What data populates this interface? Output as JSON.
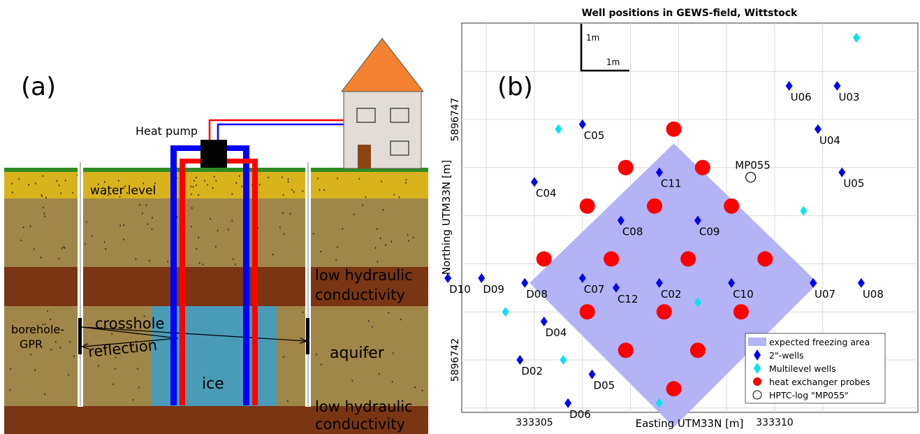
{
  "panel_a": {
    "label": "(a)",
    "heat_pump": "Heat pump",
    "water_level": "water level",
    "low_conductivity_top_1": "low hydraulic",
    "low_conductivity_top_2": "conductivity",
    "low_conductivity_bottom_1": "low hydraulic",
    "low_conductivity_bottom_2": "conductivity",
    "borehole_1": "borehole-",
    "borehole_2": "GPR",
    "crosshole": "crosshole",
    "reflection": "reflection",
    "aquifer": "aquifer",
    "ice": "ice",
    "colors": {
      "grass": "#2e8b1e",
      "topsoil": "#d8b21c",
      "soil": "#a08648",
      "clay": "#7a3512",
      "ice": "#4a9bb8",
      "pipe_blue": "#0000ff",
      "pipe_red": "#ff0000",
      "roof": "#f48230",
      "wall": "#e2dcd6",
      "door": "#8b4513"
    }
  },
  "panel_b": {
    "label": "(b)",
    "scale_vertical": "1m",
    "scale_horizontal": "1m"
  },
  "chart_data": {
    "type": "scatter",
    "title": "Well positions in GEWS-field, Wittstock",
    "xlabel": "Easting UTM33N [m]",
    "ylabel": "Northing UTM33N [m]",
    "xlim": [
      333302.0,
      333312.0
    ],
    "ylim": [
      5896741.0,
      5896748.5
    ],
    "xticks": [
      "333305",
      "333310"
    ],
    "yticks": [
      "5896742",
      "5896747"
    ],
    "grid": true,
    "legend_position": "bottom-right",
    "freezing_area": {
      "name": "expected freezing area",
      "color": "#b3b3f6",
      "polygon": [
        [
          333307.9,
          5896746.5
        ],
        [
          333310.9,
          5896743.6
        ],
        [
          333307.9,
          5896740.6
        ],
        [
          333304.9,
          5896743.6
        ]
      ]
    },
    "series": [
      {
        "name": "2\"-wells",
        "marker": "diamond",
        "color": "#0000ee",
        "points": [
          {
            "x": 333303.2,
            "y": 5896743.7,
            "label": "D10"
          },
          {
            "x": 333303.9,
            "y": 5896743.7,
            "label": "D09"
          },
          {
            "x": 333304.8,
            "y": 5896743.6,
            "label": "D08"
          },
          {
            "x": 333306.0,
            "y": 5896743.7,
            "label": "C07"
          },
          {
            "x": 333307.6,
            "y": 5896743.6,
            "label": "C02"
          },
          {
            "x": 333309.1,
            "y": 5896743.6,
            "label": "C10"
          },
          {
            "x": 333310.8,
            "y": 5896743.6,
            "label": "U07"
          },
          {
            "x": 333311.8,
            "y": 5896743.6,
            "label": "U08"
          },
          {
            "x": 333306.7,
            "y": 5896743.5,
            "label": "C12"
          },
          {
            "x": 333305.2,
            "y": 5896742.8,
            "label": "D04"
          },
          {
            "x": 333304.7,
            "y": 5896742.0,
            "label": "D02"
          },
          {
            "x": 333306.2,
            "y": 5896741.7,
            "label": "D05"
          },
          {
            "x": 333305.7,
            "y": 5896741.1,
            "label": "D06"
          },
          {
            "x": 333306.0,
            "y": 5896746.9,
            "label": "C05"
          },
          {
            "x": 333305.0,
            "y": 5896745.7,
            "label": "C04"
          },
          {
            "x": 333307.6,
            "y": 5896745.9,
            "label": "C11"
          },
          {
            "x": 333306.8,
            "y": 5896744.9,
            "label": "C08"
          },
          {
            "x": 333308.4,
            "y": 5896744.9,
            "label": "C09"
          },
          {
            "x": 333310.3,
            "y": 5896747.7,
            "label": "U06"
          },
          {
            "x": 333311.3,
            "y": 5896747.7,
            "label": "U03"
          },
          {
            "x": 333310.9,
            "y": 5896746.8,
            "label": "U04"
          },
          {
            "x": 333311.4,
            "y": 5896745.9,
            "label": "U05"
          }
        ]
      },
      {
        "name": "Multilevel wells",
        "marker": "diamond",
        "color": "#00e5ee",
        "points": [
          {
            "x": 333305.5,
            "y": 5896746.8
          },
          {
            "x": 333304.4,
            "y": 5896743.0
          },
          {
            "x": 333305.6,
            "y": 5896742.0
          },
          {
            "x": 333308.4,
            "y": 5896743.2
          },
          {
            "x": 333310.6,
            "y": 5896745.1
          },
          {
            "x": 333307.6,
            "y": 5896741.1
          },
          {
            "x": 333311.7,
            "y": 5896748.7
          }
        ]
      },
      {
        "name": "heat exchanger probes",
        "marker": "circle",
        "color": "#ff0000",
        "points": [
          {
            "x": 333307.9,
            "y": 5896746.8
          },
          {
            "x": 333306.9,
            "y": 5896746.0
          },
          {
            "x": 333308.5,
            "y": 5896746.0
          },
          {
            "x": 333306.1,
            "y": 5896745.2
          },
          {
            "x": 333307.5,
            "y": 5896745.2
          },
          {
            "x": 333309.1,
            "y": 5896745.2
          },
          {
            "x": 333305.2,
            "y": 5896744.1
          },
          {
            "x": 333306.6,
            "y": 5896744.1
          },
          {
            "x": 333308.2,
            "y": 5896744.1
          },
          {
            "x": 333309.8,
            "y": 5896744.1
          },
          {
            "x": 333306.1,
            "y": 5896743.0
          },
          {
            "x": 333307.7,
            "y": 5896743.0
          },
          {
            "x": 333309.3,
            "y": 5896743.0
          },
          {
            "x": 333306.9,
            "y": 5896742.2
          },
          {
            "x": 333308.4,
            "y": 5896742.2
          },
          {
            "x": 333307.9,
            "y": 5896741.4
          }
        ]
      },
      {
        "name": "HPTC-log \"MP055\"",
        "marker": "open-circle",
        "color": "#000000",
        "points": [
          {
            "x": 333309.5,
            "y": 5896745.8,
            "label": "MP055"
          }
        ]
      }
    ]
  }
}
